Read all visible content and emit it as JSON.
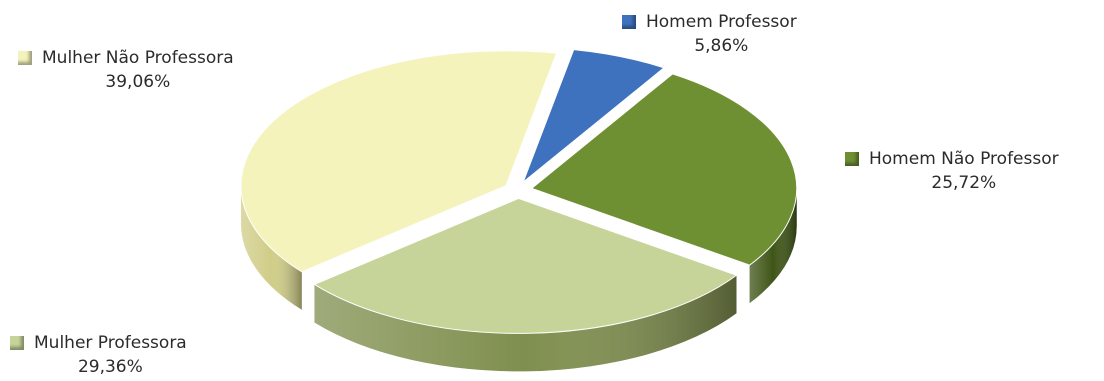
{
  "chart_data": {
    "type": "pie",
    "title": "",
    "legend": "none",
    "slices": [
      {
        "name": "Homem Professor",
        "value": 5.86,
        "label": "5,86%",
        "color": "#3f72be",
        "side": "#1f4a8a"
      },
      {
        "name": "Homem Não Professor",
        "value": 25.72,
        "label": "25,72%",
        "color": "#6f8f33",
        "side": "#3f5517"
      },
      {
        "name": "Mulher Professora",
        "value": 29.36,
        "label": "29,36%",
        "color": "#c6d49a",
        "side": "#7f8f4e"
      },
      {
        "name": "Mulher  Não Professora",
        "value": 39.06,
        "label": "39,06%",
        "color": "#f5f3bc",
        "side": "#d0cd88"
      }
    ]
  }
}
